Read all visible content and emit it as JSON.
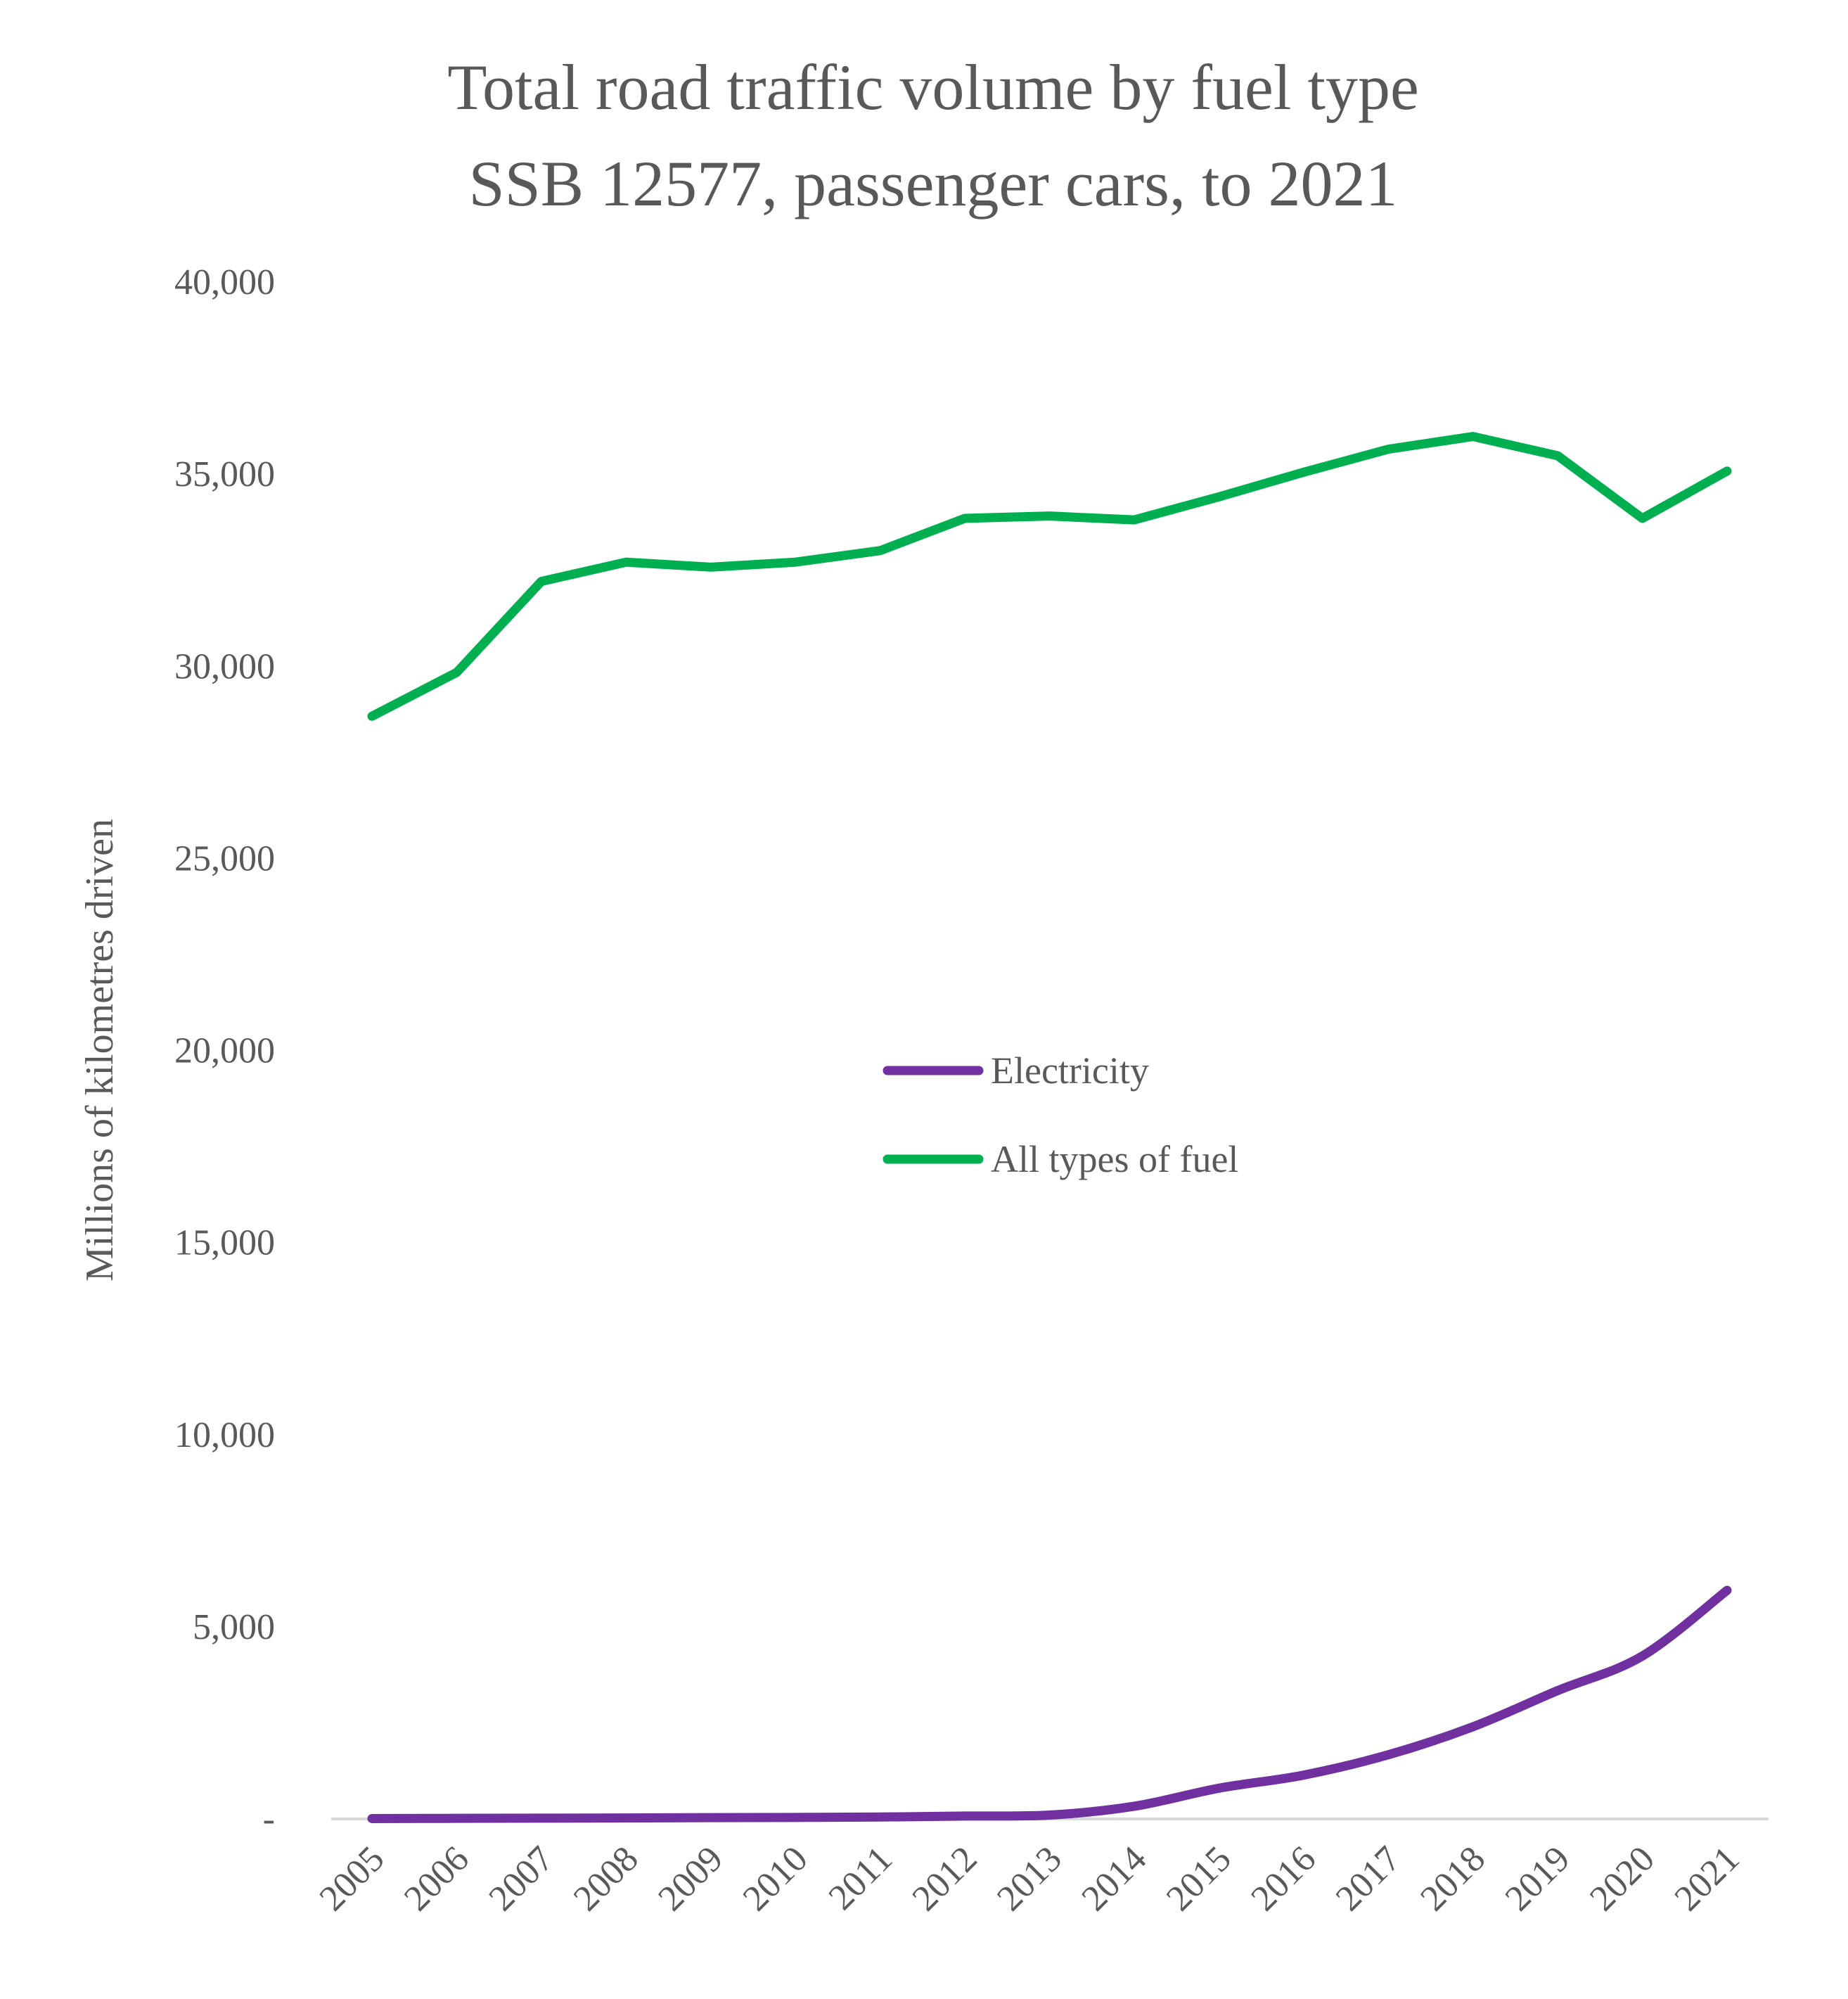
{
  "chart_data": {
    "type": "line",
    "title": "Total road traffic volume by fuel type",
    "subtitle": "SSB 12577, passenger cars, to 2021",
    "xlabel": "",
    "ylabel": "Millions of kilometres driven",
    "ylim": [
      0,
      40000
    ],
    "yticks": [
      0,
      5000,
      10000,
      15000,
      20000,
      25000,
      30000,
      35000,
      40000
    ],
    "ytick_labels": [
      "-",
      "5,000",
      "10,000",
      "15,000",
      "20,000",
      "25,000",
      "30,000",
      "35,000",
      "40,000"
    ],
    "categories": [
      "2005",
      "2006",
      "2007",
      "2008",
      "2009",
      "2010",
      "2011",
      "2012",
      "2013",
      "2014",
      "2015",
      "2016",
      "2017",
      "2018",
      "2019",
      "2020",
      "2021"
    ],
    "grid": false,
    "legend_position": "center",
    "series": [
      {
        "name": "Electricity",
        "color": "#7030A0",
        "smooth": true,
        "values": [
          10,
          15,
          20,
          25,
          35,
          40,
          50,
          75,
          100,
          330,
          800,
          1140,
          1670,
          2400,
          3340,
          4240,
          5950
        ]
      },
      {
        "name": "All types of fuel",
        "color": "#00B050",
        "smooth": false,
        "values": [
          28700,
          29840,
          32210,
          32710,
          32580,
          32710,
          33010,
          33850,
          33910,
          33810,
          34410,
          35050,
          35650,
          35980,
          35480,
          33850,
          35080
        ]
      }
    ]
  }
}
